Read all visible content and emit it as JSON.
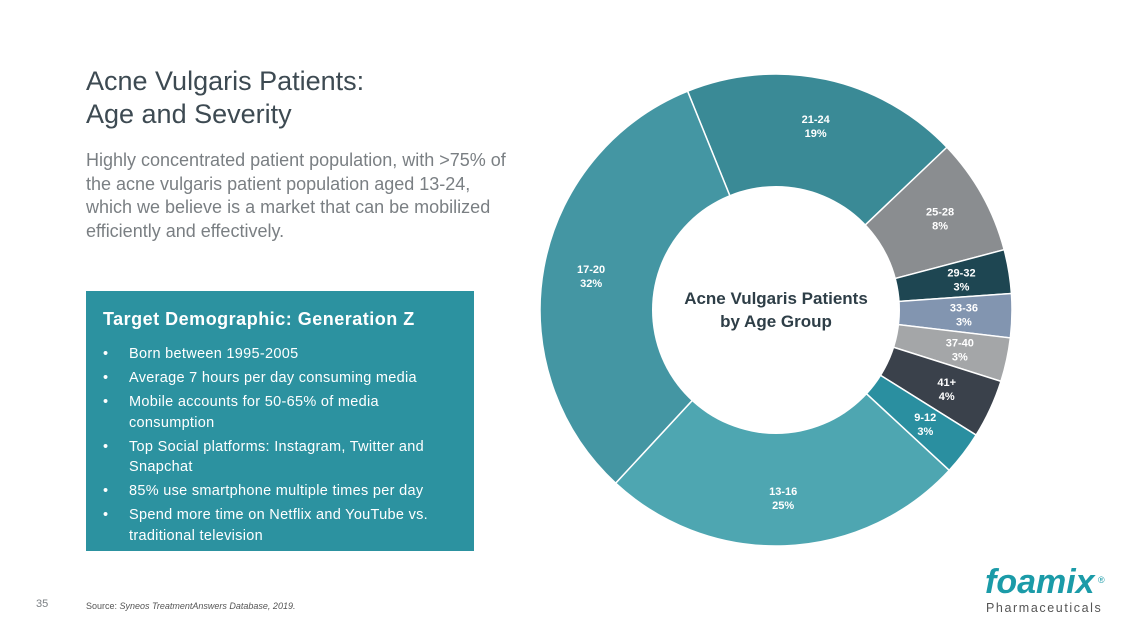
{
  "title_lines": [
    "Acne Vulgaris Patients:",
    "Age and Severity"
  ],
  "subtitle": "Highly concentrated patient population, with >75% of the acne vulgaris patient population aged 13-24, which we believe is a market that can be mobilized efficiently and effectively.",
  "target_box": {
    "title": "Target Demographic: Generation Z",
    "bullets": [
      "Born between 1995-2005",
      "Average 7 hours per day consuming media",
      "Mobile accounts for 50-65% of media consumption",
      "Top Social platforms: Instagram, Twitter and Snapchat",
      "85% use smartphone multiple times per day",
      "Spend more time on Netflix and YouTube vs. traditional television"
    ]
  },
  "footer": {
    "page_number": "35",
    "source_prefix": "Source: ",
    "source_text": "Syneos TreatmentAnswers Database, 2019."
  },
  "logo": {
    "wordmark": "foamix",
    "registered": "®",
    "tagline": "Pharmaceuticals"
  },
  "chart_data": {
    "type": "pie",
    "variant": "donut",
    "title": "Acne Vulgaris Patients by Age Group",
    "title_lines": [
      "Acne Vulgaris Patients",
      "by Age Group"
    ],
    "unit": "%",
    "slices": [
      {
        "label": "21-24",
        "value": 19,
        "color": "#3a8a96"
      },
      {
        "label": "25-28",
        "value": 8,
        "color": "#8a8d90"
      },
      {
        "label": "29-32",
        "value": 3,
        "color": "#1e4652"
      },
      {
        "label": "33-36",
        "value": 3,
        "color": "#8295b0"
      },
      {
        "label": "37-40",
        "value": 3,
        "color": "#a4a6a8"
      },
      {
        "label": "41+",
        "value": 4,
        "color": "#3a414b"
      },
      {
        "label": "9-12",
        "value": 3,
        "color": "#2a8fa0"
      },
      {
        "label": "13-16",
        "value": 25,
        "color": "#4ea6b1"
      },
      {
        "label": "17-20",
        "value": 32,
        "color": "#4496a3"
      }
    ]
  }
}
